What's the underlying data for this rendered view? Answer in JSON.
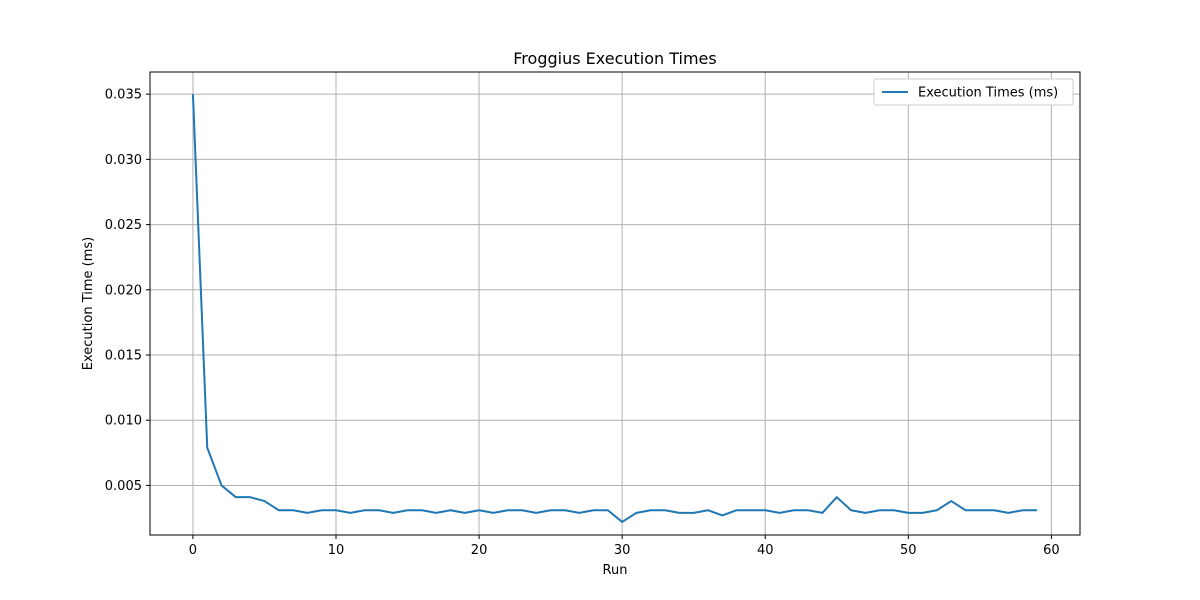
{
  "chart_data": {
    "type": "line",
    "title": "Froggius Execution Times",
    "xlabel": "Run",
    "ylabel": "Execution Time (ms)",
    "xlim": [
      -3,
      62
    ],
    "ylim": [
      0.0012,
      0.0367
    ],
    "xticks": [
      0,
      10,
      20,
      30,
      40,
      50,
      60
    ],
    "yticks": [
      0.005,
      0.01,
      0.015,
      0.02,
      0.025,
      0.03,
      0.035
    ],
    "xtick_labels": [
      "0",
      "10",
      "20",
      "30",
      "40",
      "50",
      "60"
    ],
    "ytick_labels": [
      "0.005",
      "0.010",
      "0.015",
      "0.020",
      "0.025",
      "0.030",
      "0.035"
    ],
    "grid": true,
    "legend_position": "top-right",
    "series": [
      {
        "name": "Execution Times (ms)",
        "color": "#1f77b4",
        "x": [
          0,
          1,
          2,
          3,
          4,
          5,
          6,
          7,
          8,
          9,
          10,
          11,
          12,
          13,
          14,
          15,
          16,
          17,
          18,
          19,
          20,
          21,
          22,
          23,
          24,
          25,
          26,
          27,
          28,
          29,
          30,
          31,
          32,
          33,
          34,
          35,
          36,
          37,
          38,
          39,
          40,
          41,
          42,
          43,
          44,
          45,
          46,
          47,
          48,
          49,
          50,
          51,
          52,
          53,
          54,
          55,
          56,
          57,
          58,
          59
        ],
        "y": [
          0.035,
          0.0079,
          0.005,
          0.0041,
          0.0041,
          0.0038,
          0.0031,
          0.0031,
          0.0029,
          0.0031,
          0.0031,
          0.0029,
          0.0031,
          0.0031,
          0.0029,
          0.0031,
          0.0031,
          0.0029,
          0.0031,
          0.0029,
          0.0031,
          0.0029,
          0.0031,
          0.0031,
          0.0029,
          0.0031,
          0.0031,
          0.0029,
          0.0031,
          0.0031,
          0.0022,
          0.0029,
          0.0031,
          0.0031,
          0.0029,
          0.0029,
          0.0031,
          0.0027,
          0.0031,
          0.0031,
          0.0031,
          0.0029,
          0.0031,
          0.0031,
          0.0029,
          0.0041,
          0.0031,
          0.0029,
          0.0031,
          0.0031,
          0.0029,
          0.0029,
          0.0031,
          0.0038,
          0.0031,
          0.0031,
          0.0031,
          0.0029,
          0.0031,
          0.0031
        ]
      }
    ]
  }
}
